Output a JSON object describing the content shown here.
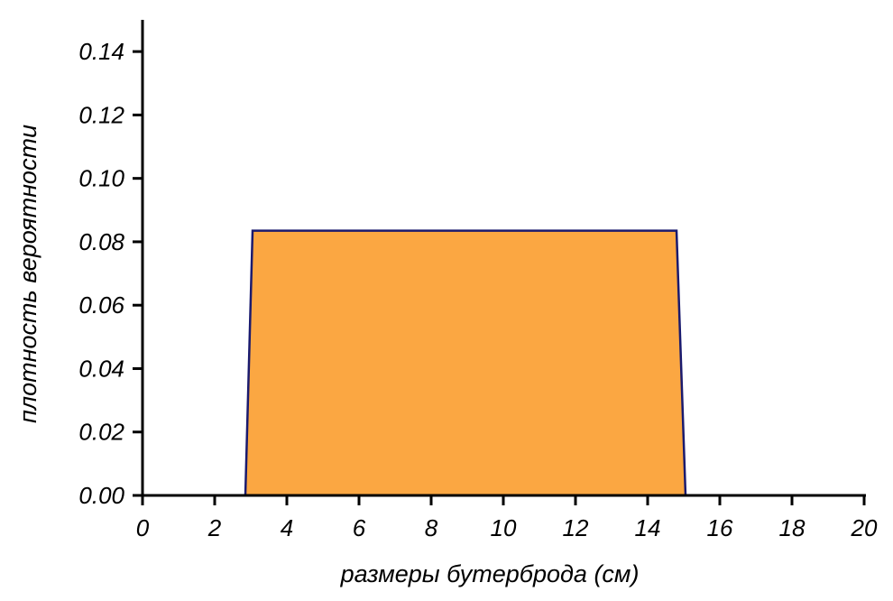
{
  "chart_data": {
    "type": "area",
    "xlabel": "размеры бутерброда (см)",
    "ylabel": "плотность вероятности",
    "xlim": [
      0,
      20
    ],
    "ylim": [
      0,
      0.15
    ],
    "x_ticks": [
      "0",
      "2",
      "4",
      "6",
      "8",
      "10",
      "12",
      "14",
      "16",
      "18",
      "20"
    ],
    "y_ticks": [
      "0.00",
      "0.02",
      "0.04",
      "0.06",
      "0.08",
      "0.10",
      "0.12",
      "0.14"
    ],
    "grid": false,
    "series": [
      {
        "x": [
          0,
          2.85,
          3.05,
          14.8,
          15.05,
          20
        ],
        "y": [
          0,
          0,
          0.0835,
          0.0835,
          0,
          0
        ],
        "fill": "#fba742",
        "line": "#1a1a6e"
      }
    ]
  }
}
